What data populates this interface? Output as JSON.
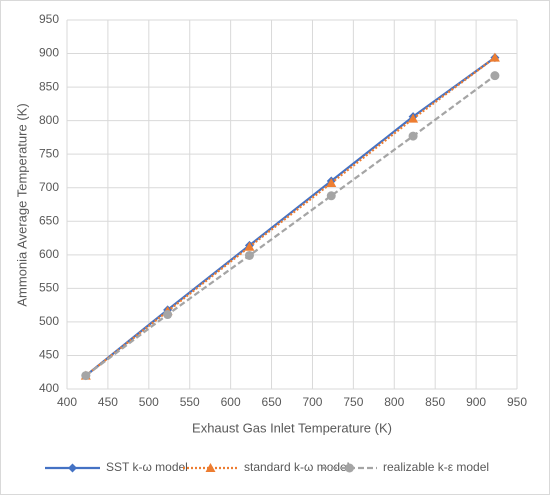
{
  "chart_data": {
    "type": "line",
    "x_label": "Exhaust Gas Inlet Temperature (K)",
    "y_label": "Ammonia Average Temperature (K)",
    "x": [
      423,
      523,
      623,
      723,
      823,
      923
    ],
    "series": [
      {
        "name": "SST k-ω model",
        "color": "#4472c4",
        "dash": "solid",
        "marker": "diamond",
        "values": [
          420,
          518,
          614,
          710,
          806,
          894
        ]
      },
      {
        "name": "standard k-ω model",
        "color": "#ed7d31",
        "dash": "dotted",
        "marker": "triangle",
        "values": [
          420,
          516,
          612,
          707,
          803,
          894
        ]
      },
      {
        "name": "realizable k-ε model",
        "color": "#a5a5a5",
        "dash": "dashed",
        "marker": "circle",
        "values": [
          420,
          511,
          599,
          688,
          777,
          867
        ]
      }
    ],
    "xlim": [
      400,
      950
    ],
    "xticks": [
      400,
      450,
      500,
      550,
      600,
      650,
      700,
      750,
      800,
      850,
      900,
      950
    ],
    "ylim": [
      400,
      950
    ],
    "yticks": [
      400,
      450,
      500,
      550,
      600,
      650,
      700,
      750,
      800,
      850,
      900,
      950
    ],
    "grid": true,
    "legend": "bottom"
  }
}
